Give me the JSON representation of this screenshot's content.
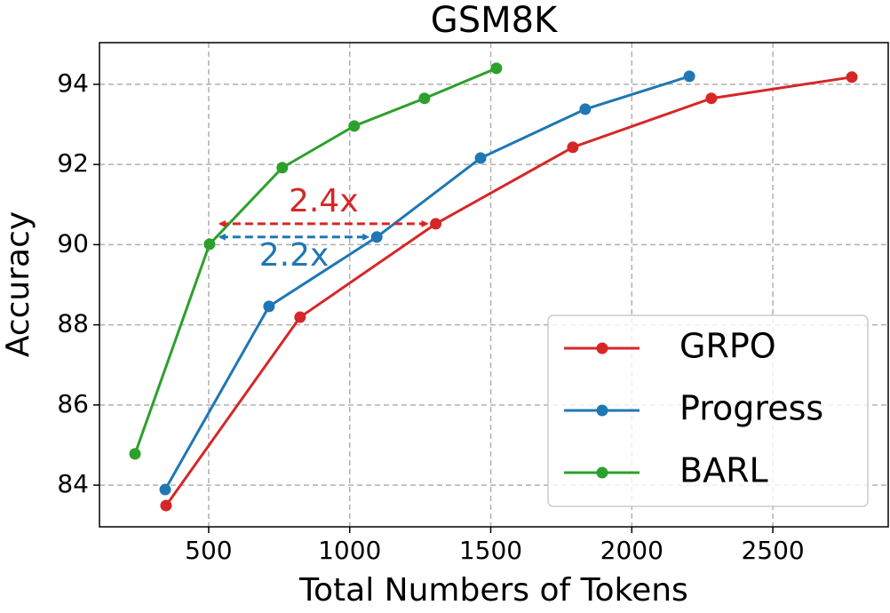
{
  "chart_data": {
    "type": "line",
    "title": "GSM8K",
    "xlabel": "Total Numbers of Tokens",
    "ylabel": "Accuracy",
    "series": [
      {
        "name": "GRPO",
        "color": "#d62728",
        "x": [
          349,
          824,
          1305,
          1791,
          2282,
          2780
        ],
        "values": [
          83.49,
          88.19,
          90.52,
          92.43,
          93.65,
          94.18
        ]
      },
      {
        "name": "Progress",
        "color": "#1f77b4",
        "x": [
          346,
          714,
          1096,
          1464,
          1835,
          2204
        ],
        "values": [
          83.89,
          88.46,
          90.19,
          92.16,
          93.38,
          94.2
        ]
      },
      {
        "name": "BARL",
        "color": "#2ca02c",
        "x": [
          239,
          503,
          761,
          1016,
          1265,
          1520
        ],
        "values": [
          84.78,
          90.01,
          91.92,
          92.96,
          93.65,
          94.4
        ]
      }
    ],
    "annotations": [
      {
        "text": "2.4x",
        "color": "#d62728"
      },
      {
        "text": "2.2x",
        "color": "#1f77b4"
      }
    ],
    "xlim": [
      113,
      2909
    ],
    "ylim": [
      82.96,
      95.04
    ],
    "xticks": [
      500,
      1000,
      1500,
      2000,
      2500
    ],
    "yticks": [
      84,
      86,
      88,
      90,
      92,
      94
    ],
    "grid": true,
    "legend": "lower right"
  }
}
